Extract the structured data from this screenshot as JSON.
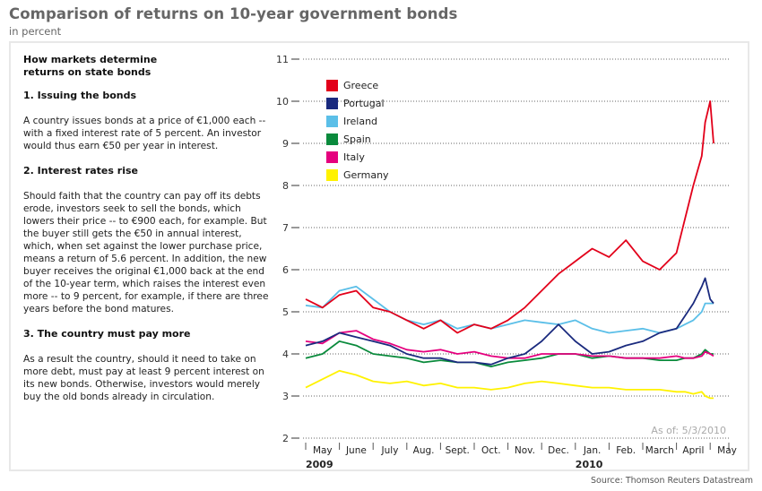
{
  "header": {
    "title": "Comparison of returns on 10-year government bonds",
    "subtitle": "in percent"
  },
  "explainer": {
    "heading": "How markets determine returns on state bonds",
    "sections": [
      {
        "title": "1. Issuing the bonds",
        "body": "A country issues bonds at a price of €1,000 each -- with a fixed interest rate of 5 percent. An investor would thus earn €50 per year in interest."
      },
      {
        "title": "2. Interest rates rise",
        "body": "Should faith that the country can pay off its debts erode, investors seek to sell the bonds, which lowers their price -- to €900 each, for example. But the buyer still gets the €50 in annual interest, which, when set against the lower purchase price, means a return of 5.6 percent. In addition, the new buyer receives the original €1,000 back at the end of the 10-year term, which raises the interest even more -- to 9 percent, for example, if there are three years before the bond matures."
      },
      {
        "title": "3. The country must pay more",
        "body": "As a result the country, should it need to take on more debt, must pay at least 9 percent interest on its new bonds. Otherwise, investors would merely buy the old bonds already in circulation."
      }
    ]
  },
  "footer": {
    "as_of": "As of: 5/3/2010",
    "source": "Source: Thomson Reuters Datastream"
  },
  "chart_data": {
    "type": "line",
    "title": "Comparison of returns on 10-year government bonds",
    "subtitle": "in percent",
    "ylabel": "percent",
    "ylim": [
      2,
      11
    ],
    "yticks": [
      "2",
      "3",
      "4",
      "5",
      "6",
      "7",
      "8",
      "9",
      "10",
      "11"
    ],
    "grid": true,
    "legend_position": "top-left",
    "x_unit": "months since start of May 2009",
    "xlim": [
      0,
      12.1
    ],
    "xtick_labels": [
      "May",
      "June",
      "July",
      "Aug.",
      "Sept.",
      "Oct.",
      "Nov.",
      "Dec.",
      "Jan.",
      "Feb.",
      "March",
      "April",
      "May"
    ],
    "year_labels": [
      {
        "label": "2009",
        "month_index": 0
      },
      {
        "label": "2010",
        "month_index": 8
      }
    ],
    "x": [
      0,
      0.5,
      1,
      1.5,
      2,
      2.5,
      3,
      3.5,
      4,
      4.5,
      5,
      5.5,
      6,
      6.5,
      7,
      7.5,
      8,
      8.5,
      9,
      9.5,
      10,
      10.5,
      11,
      11.25,
      11.5,
      11.75,
      11.85,
      12.0,
      12.1
    ],
    "series": [
      {
        "name": "Greece",
        "color": "#e2001a",
        "values": [
          5.3,
          5.1,
          5.4,
          5.5,
          5.1,
          5.0,
          4.8,
          4.6,
          4.8,
          4.5,
          4.7,
          4.6,
          4.8,
          5.1,
          5.5,
          5.9,
          6.2,
          6.5,
          6.3,
          6.7,
          6.2,
          6.0,
          6.4,
          7.2,
          8.0,
          8.7,
          9.5,
          10.0,
          9.0
        ]
      },
      {
        "name": "Portugal",
        "color": "#1a2a7e",
        "values": [
          4.2,
          4.3,
          4.5,
          4.4,
          4.3,
          4.2,
          4.0,
          3.9,
          3.9,
          3.8,
          3.8,
          3.75,
          3.9,
          4.0,
          4.3,
          4.7,
          4.3,
          4.0,
          4.05,
          4.2,
          4.3,
          4.5,
          4.6,
          4.9,
          5.2,
          5.6,
          5.8,
          5.3,
          5.2
        ]
      },
      {
        "name": "Ireland",
        "color": "#5bbfe8",
        "values": [
          5.15,
          5.1,
          5.5,
          5.6,
          5.3,
          5.0,
          4.8,
          4.7,
          4.8,
          4.6,
          4.7,
          4.6,
          4.7,
          4.8,
          4.75,
          4.7,
          4.8,
          4.6,
          4.5,
          4.55,
          4.6,
          4.5,
          4.6,
          4.7,
          4.8,
          5.0,
          5.2,
          5.2,
          5.2
        ]
      },
      {
        "name": "Spain",
        "color": "#0a8a3c",
        "values": [
          3.9,
          4.0,
          4.3,
          4.2,
          4.0,
          3.95,
          3.9,
          3.8,
          3.85,
          3.8,
          3.8,
          3.7,
          3.8,
          3.85,
          3.9,
          4.0,
          4.0,
          3.9,
          3.95,
          3.9,
          3.9,
          3.85,
          3.85,
          3.9,
          3.9,
          4.0,
          4.1,
          4.0,
          4.0
        ]
      },
      {
        "name": "Italy",
        "color": "#e5007e",
        "values": [
          4.3,
          4.25,
          4.5,
          4.55,
          4.35,
          4.25,
          4.1,
          4.05,
          4.1,
          4.0,
          4.05,
          3.95,
          3.9,
          3.9,
          4.0,
          4.0,
          4.0,
          3.95,
          3.95,
          3.9,
          3.9,
          3.9,
          3.95,
          3.9,
          3.9,
          3.95,
          4.05,
          4.0,
          3.95
        ]
      },
      {
        "name": "Germany",
        "color": "#fff200",
        "values": [
          3.2,
          3.4,
          3.6,
          3.5,
          3.35,
          3.3,
          3.35,
          3.25,
          3.3,
          3.2,
          3.2,
          3.15,
          3.2,
          3.3,
          3.35,
          3.3,
          3.25,
          3.2,
          3.2,
          3.15,
          3.15,
          3.15,
          3.1,
          3.1,
          3.05,
          3.1,
          3.0,
          2.95,
          2.95
        ]
      }
    ]
  }
}
